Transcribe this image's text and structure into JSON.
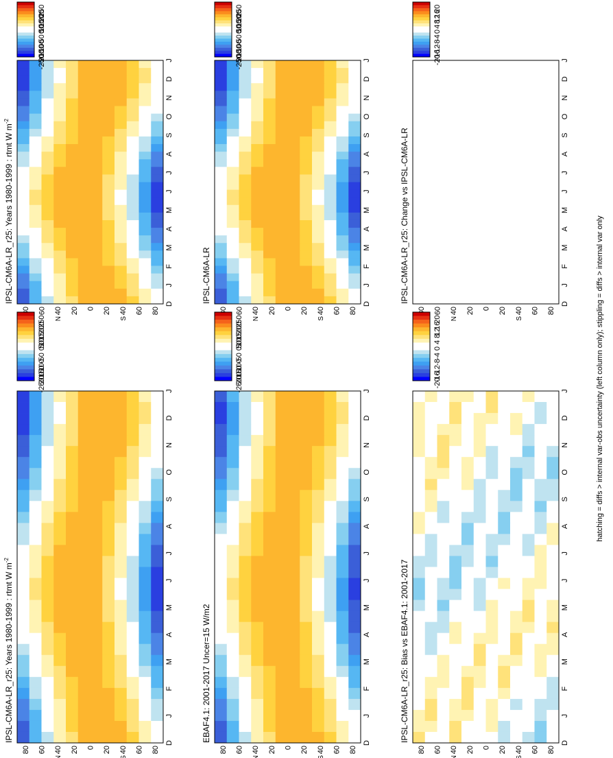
{
  "figure": {
    "footnote": "hatching = diffs > internal var-obs uncertainty (left column only); stippling = diffs > internal var only"
  },
  "colors": {
    "main_scale": [
      "#0000ff",
      "#2a3fe0",
      "#3b5fd8",
      "#4b84e6",
      "#3ea0f2",
      "#56b7f3",
      "#86cff0",
      "#bfe3f0",
      "#ffffff",
      "#ffffff",
      "#fff3b3",
      "#ffe27a",
      "#ffd23f",
      "#fdb62e",
      "#fb8c1d",
      "#f5621a",
      "#e63012",
      "#cc0000"
    ],
    "bias_scale": [
      "#0000ff",
      "#2a3fe0",
      "#3b5fd8",
      "#4b84e6",
      "#3ea0f2",
      "#56b7f3",
      "#86cff0",
      "#bfe3f0",
      "#ffffff",
      "#ffffff",
      "#fff3b3",
      "#ffe27a",
      "#ffd23f",
      "#fdb62e",
      "#fb8c1d",
      "#f5621a",
      "#e63012",
      "#cc0000"
    ]
  },
  "chart_data": [
    {
      "id": "model-rtmt",
      "type": "heatmap",
      "title": "IPSL-CM6A-LR_r25: Years 1980-1999 : rtmt W m",
      "title_sup": "-2",
      "months": [
        "D",
        "J",
        "F",
        "M",
        "A",
        "M",
        "J",
        "J",
        "A",
        "S",
        "O",
        "N",
        "D",
        "J"
      ],
      "lat_labels": [
        "80",
        "60",
        "40",
        "20",
        "0",
        "20",
        "40",
        "60",
        "80"
      ],
      "lat_units": [
        "",
        "",
        "N",
        "",
        "",
        "",
        "S",
        "",
        ""
      ],
      "color_scale": "main",
      "value_range": [
        -270,
        270
      ],
      "amplitude": 230,
      "hatching": true
    },
    {
      "id": "obs-rtmt",
      "type": "heatmap",
      "title": "EBAF4.1: 2001-2017 Uncer=15 W/m2",
      "title_sup": "",
      "months": [
        "D",
        "J",
        "F",
        "M",
        "A",
        "M",
        "J",
        "J",
        "A",
        "S",
        "O",
        "N",
        "D",
        "J"
      ],
      "lat_labels": [
        "80",
        "60",
        "40",
        "20",
        "0",
        "20",
        "40",
        "60",
        "80"
      ],
      "lat_units": [
        "",
        "",
        "N",
        "",
        "",
        "",
        "S",
        "",
        ""
      ],
      "color_scale": "main",
      "value_range": [
        -270,
        270
      ],
      "amplitude": 225,
      "hatching": true
    },
    {
      "id": "bias",
      "type": "heatmap",
      "title": "IPSL-CM6A-LR_r25: Bias vs EBAF4.1: 2001-2017",
      "title_sup": "",
      "months": [
        "D",
        "J",
        "F",
        "M",
        "A",
        "M",
        "J",
        "J",
        "A",
        "S",
        "O",
        "N",
        "D",
        "J"
      ],
      "lat_labels": [
        "80",
        "60",
        "40",
        "20",
        "0",
        "20",
        "40",
        "60",
        "80"
      ],
      "lat_units": [
        "",
        "",
        "N",
        "",
        "",
        "",
        "S",
        "",
        ""
      ],
      "color_scale": "bias",
      "value_range": [
        -22,
        22
      ],
      "amplitude": 6,
      "hatching": true
    },
    {
      "id": "model-rtmt-2",
      "type": "heatmap",
      "title": "IPSL-CM6A-LR_r25: Years 1980-1999 : rtmt W m",
      "title_sup": "-2",
      "months": [
        "D",
        "J",
        "F",
        "M",
        "A",
        "M",
        "J",
        "J",
        "A",
        "S",
        "O",
        "N",
        "D",
        "J"
      ],
      "lat_labels": [
        "80",
        "60",
        "40",
        "20",
        "0",
        "20",
        "40",
        "60",
        "80"
      ],
      "lat_units": [
        "",
        "",
        "N",
        "",
        "",
        "",
        "S",
        "",
        ""
      ],
      "color_scale": "main",
      "value_range": [
        -270,
        270
      ],
      "amplitude": 230,
      "hatching": false
    },
    {
      "id": "model-rtmt-3",
      "type": "heatmap",
      "title": "IPSL-CM6A-LR",
      "title_sup": "",
      "months": [
        "D",
        "J",
        "F",
        "M",
        "A",
        "M",
        "J",
        "J",
        "A",
        "S",
        "O",
        "N",
        "D",
        "J"
      ],
      "lat_labels": [
        "80",
        "60",
        "40",
        "20",
        "0",
        "20",
        "40",
        "60",
        "80"
      ],
      "lat_units": [
        "",
        "",
        "N",
        "",
        "",
        "",
        "S",
        "",
        ""
      ],
      "color_scale": "main",
      "value_range": [
        -270,
        270
      ],
      "amplitude": 230,
      "hatching": false
    },
    {
      "id": "change",
      "type": "heatmap",
      "title": "IPSL-CM6A-LR_r25: Change vs IPSL-CM6A-LR",
      "title_sup": "",
      "months": [
        "D",
        "J",
        "F",
        "M",
        "A",
        "M",
        "J",
        "J",
        "A",
        "S",
        "O",
        "N",
        "D",
        "J"
      ],
      "lat_labels": [
        "80",
        "60",
        "40",
        "20",
        "0",
        "20",
        "40",
        "60",
        "80"
      ],
      "lat_units": [
        "",
        "",
        "N",
        "",
        "",
        "",
        "S",
        "",
        ""
      ],
      "color_scale": "bias",
      "value_range": [
        -22,
        22
      ],
      "amplitude": 2,
      "hatching": false
    }
  ],
  "colorbars": [
    {
      "id": "cb-top-left",
      "labels": [
        "250",
        "200",
        "150",
        "100",
        "50",
        "0",
        "-50",
        "-100",
        "-150",
        "-200",
        "-250"
      ],
      "scale": "main"
    },
    {
      "id": "cb-mid-left",
      "labels": [
        "250",
        "200",
        "150",
        "100",
        "50",
        "0",
        "-50",
        "-100",
        "-150",
        "-200",
        "-250"
      ],
      "scale": "main"
    },
    {
      "id": "cb-bot-left",
      "labels": [
        "20",
        "16",
        "12",
        "8",
        "4",
        "0",
        "-4",
        "-8",
        "-12",
        "-16",
        "-20"
      ],
      "scale": "bias"
    },
    {
      "id": "cb-top-right",
      "labels": [
        "250",
        "200",
        "150",
        "100",
        "50",
        "0",
        "-50",
        "-100",
        "-150",
        "-200",
        "-250"
      ],
      "scale": "main"
    },
    {
      "id": "cb-mid-right",
      "labels": [
        "250",
        "200",
        "150",
        "100",
        "50",
        "0",
        "-50",
        "-100",
        "-150",
        "-200",
        "-250"
      ],
      "scale": "main"
    },
    {
      "id": "cb-bot-right",
      "labels": [
        "20",
        "16",
        "12",
        "8",
        "4",
        "0",
        "-4",
        "-8",
        "-12",
        "-16",
        "-20"
      ],
      "scale": "bias"
    }
  ]
}
